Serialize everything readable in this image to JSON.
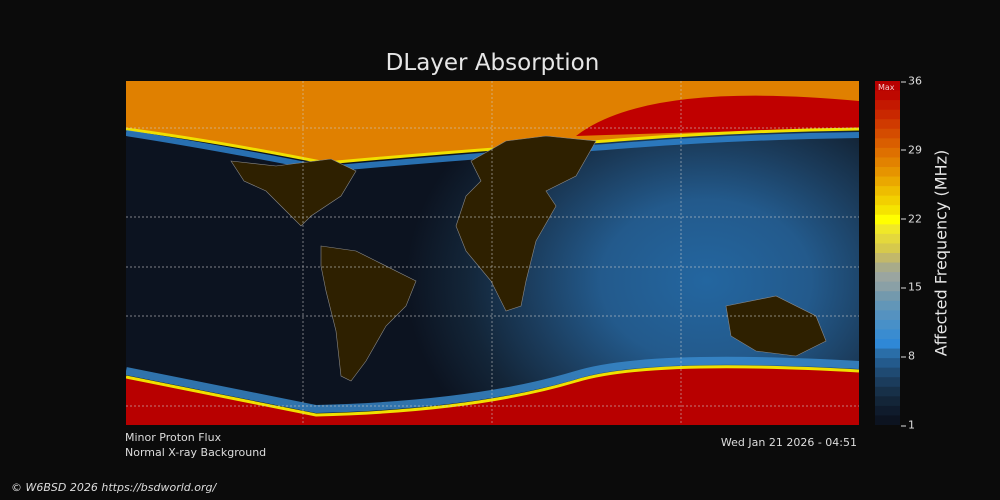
{
  "title": "DLayer Absorption",
  "colorbar": {
    "label": "Affected Frequency (MHz)",
    "max_label": "Max",
    "ticks": [
      "36",
      "29",
      "22",
      "15",
      "8",
      "1"
    ],
    "colors": [
      "#0c1320",
      "#0f1b2c",
      "#132538",
      "#173048",
      "#1b3c5c",
      "#1f4a72",
      "#235a8c",
      "#2a6ea8",
      "#2f88d6",
      "#3a8cd0",
      "#4890c8",
      "#5592c0",
      "#6296b8",
      "#7399ad",
      "#8aa0a6",
      "#9aa5a0",
      "#a8ab8a",
      "#c2b86a",
      "#d6c94c",
      "#e4d83c",
      "#f0e828",
      "#ffff00",
      "#f5e400",
      "#f2d000",
      "#eebd00",
      "#eaa800",
      "#e69400",
      "#e28200",
      "#de7000",
      "#d95e00",
      "#d44c00",
      "#cf3a00",
      "#c92800",
      "#c41800",
      "#be0800"
    ],
    "max_color": "#b80000"
  },
  "status": {
    "line1": "Minor Proton Flux",
    "line2": "Normal X-ray Background"
  },
  "timestamp": "Wed Jan 21 2026 - 04:51",
  "copyright": "© W6BSD 2026 https://bsdworld.org/"
}
